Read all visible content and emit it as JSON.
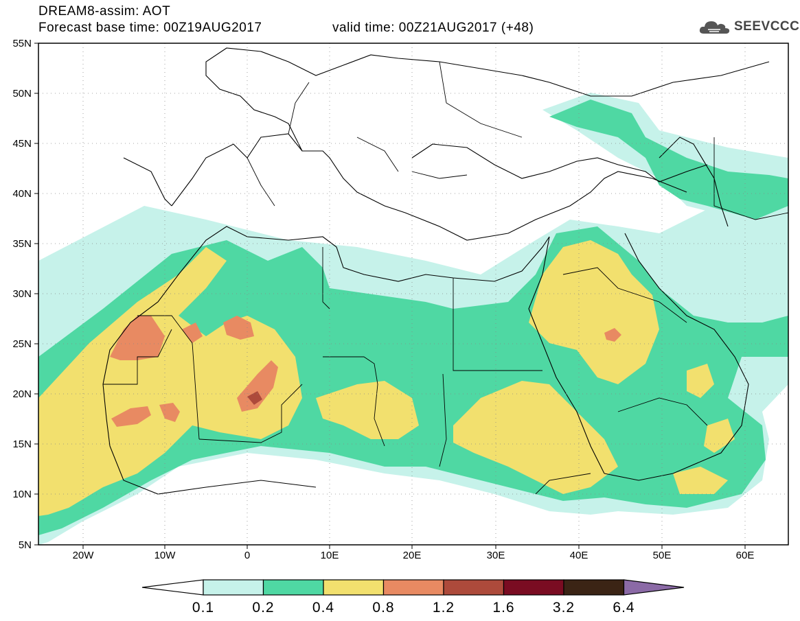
{
  "header": {
    "line1": "DREAM8-assim: AOT",
    "line2": "Forecast base time: 00Z19AUG2017",
    "valid": "valid time: 00Z21AUG2017 (+48)",
    "logo": "SEEVCCC"
  },
  "axes": {
    "lat_labels": [
      "55N",
      "50N",
      "45N",
      "40N",
      "35N",
      "30N",
      "25N",
      "20N",
      "15N",
      "10N",
      "5N"
    ],
    "lon_labels": [
      "20W",
      "10W",
      "0",
      "10E",
      "20E",
      "30E",
      "40E",
      "50E",
      "60E"
    ]
  },
  "legend": {
    "labels": [
      "0.1",
      "0.2",
      "0.4",
      "0.8",
      "1.2",
      "1.6",
      "3.2",
      "6.4"
    ],
    "colors": [
      "#c6f2ea",
      "#4fd8a3",
      "#f2e06e",
      "#e88a62",
      "#ad4a3b",
      "#7a0c22",
      "#3b2415",
      "#8b6aa6"
    ]
  },
  "colors": {
    "low": "#c6f2ea",
    "medium": "#4fd8a3",
    "high": "#f2e06e",
    "very_high": "#e88a62",
    "extreme": "#ad4a3b",
    "max": "#7a0c22"
  }
}
